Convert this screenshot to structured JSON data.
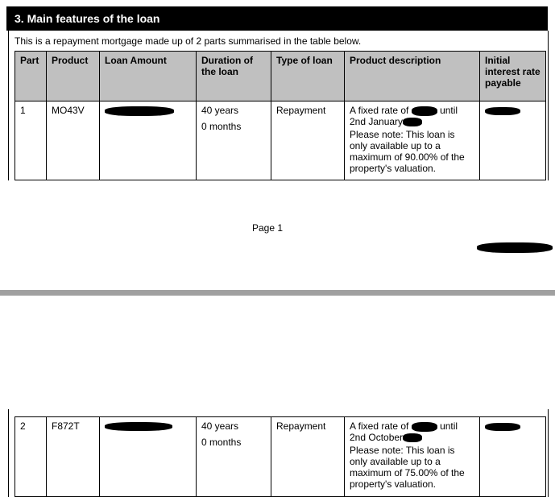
{
  "section_title": "3. Main features of the loan",
  "intro": "This is a repayment mortgage made up of 2 parts summarised in the table below.",
  "columns": [
    "Part",
    "Product",
    "Loan Amount",
    "Duration of the loan",
    "Type of loan",
    "Product description",
    "Initial interest rate payable"
  ],
  "rows": [
    {
      "part": "1",
      "product": "MO43V",
      "years": "40 years",
      "months": "0 months",
      "type": "Repayment",
      "desc_line1": "A fixed rate of",
      "desc_until": "until",
      "desc_line2": "2nd January",
      "note": "Please note: This loan is only available up to a maximum of 90.00% of the property's valuation."
    },
    {
      "part": "2",
      "product": "F872T",
      "years": "40 years",
      "months": "0 months",
      "type": "Repayment",
      "desc_line1": "A fixed rate of",
      "desc_until": "until",
      "desc_line2": "2nd October",
      "note": "Please note: This loan is only available up to a maximum of 75.00% of the property's valuation."
    }
  ],
  "page_label": "Page 1",
  "colors": {
    "header_bg": "#000000",
    "table_header_bg": "#c0c0c0",
    "page_separator": "#a0a0a0"
  }
}
